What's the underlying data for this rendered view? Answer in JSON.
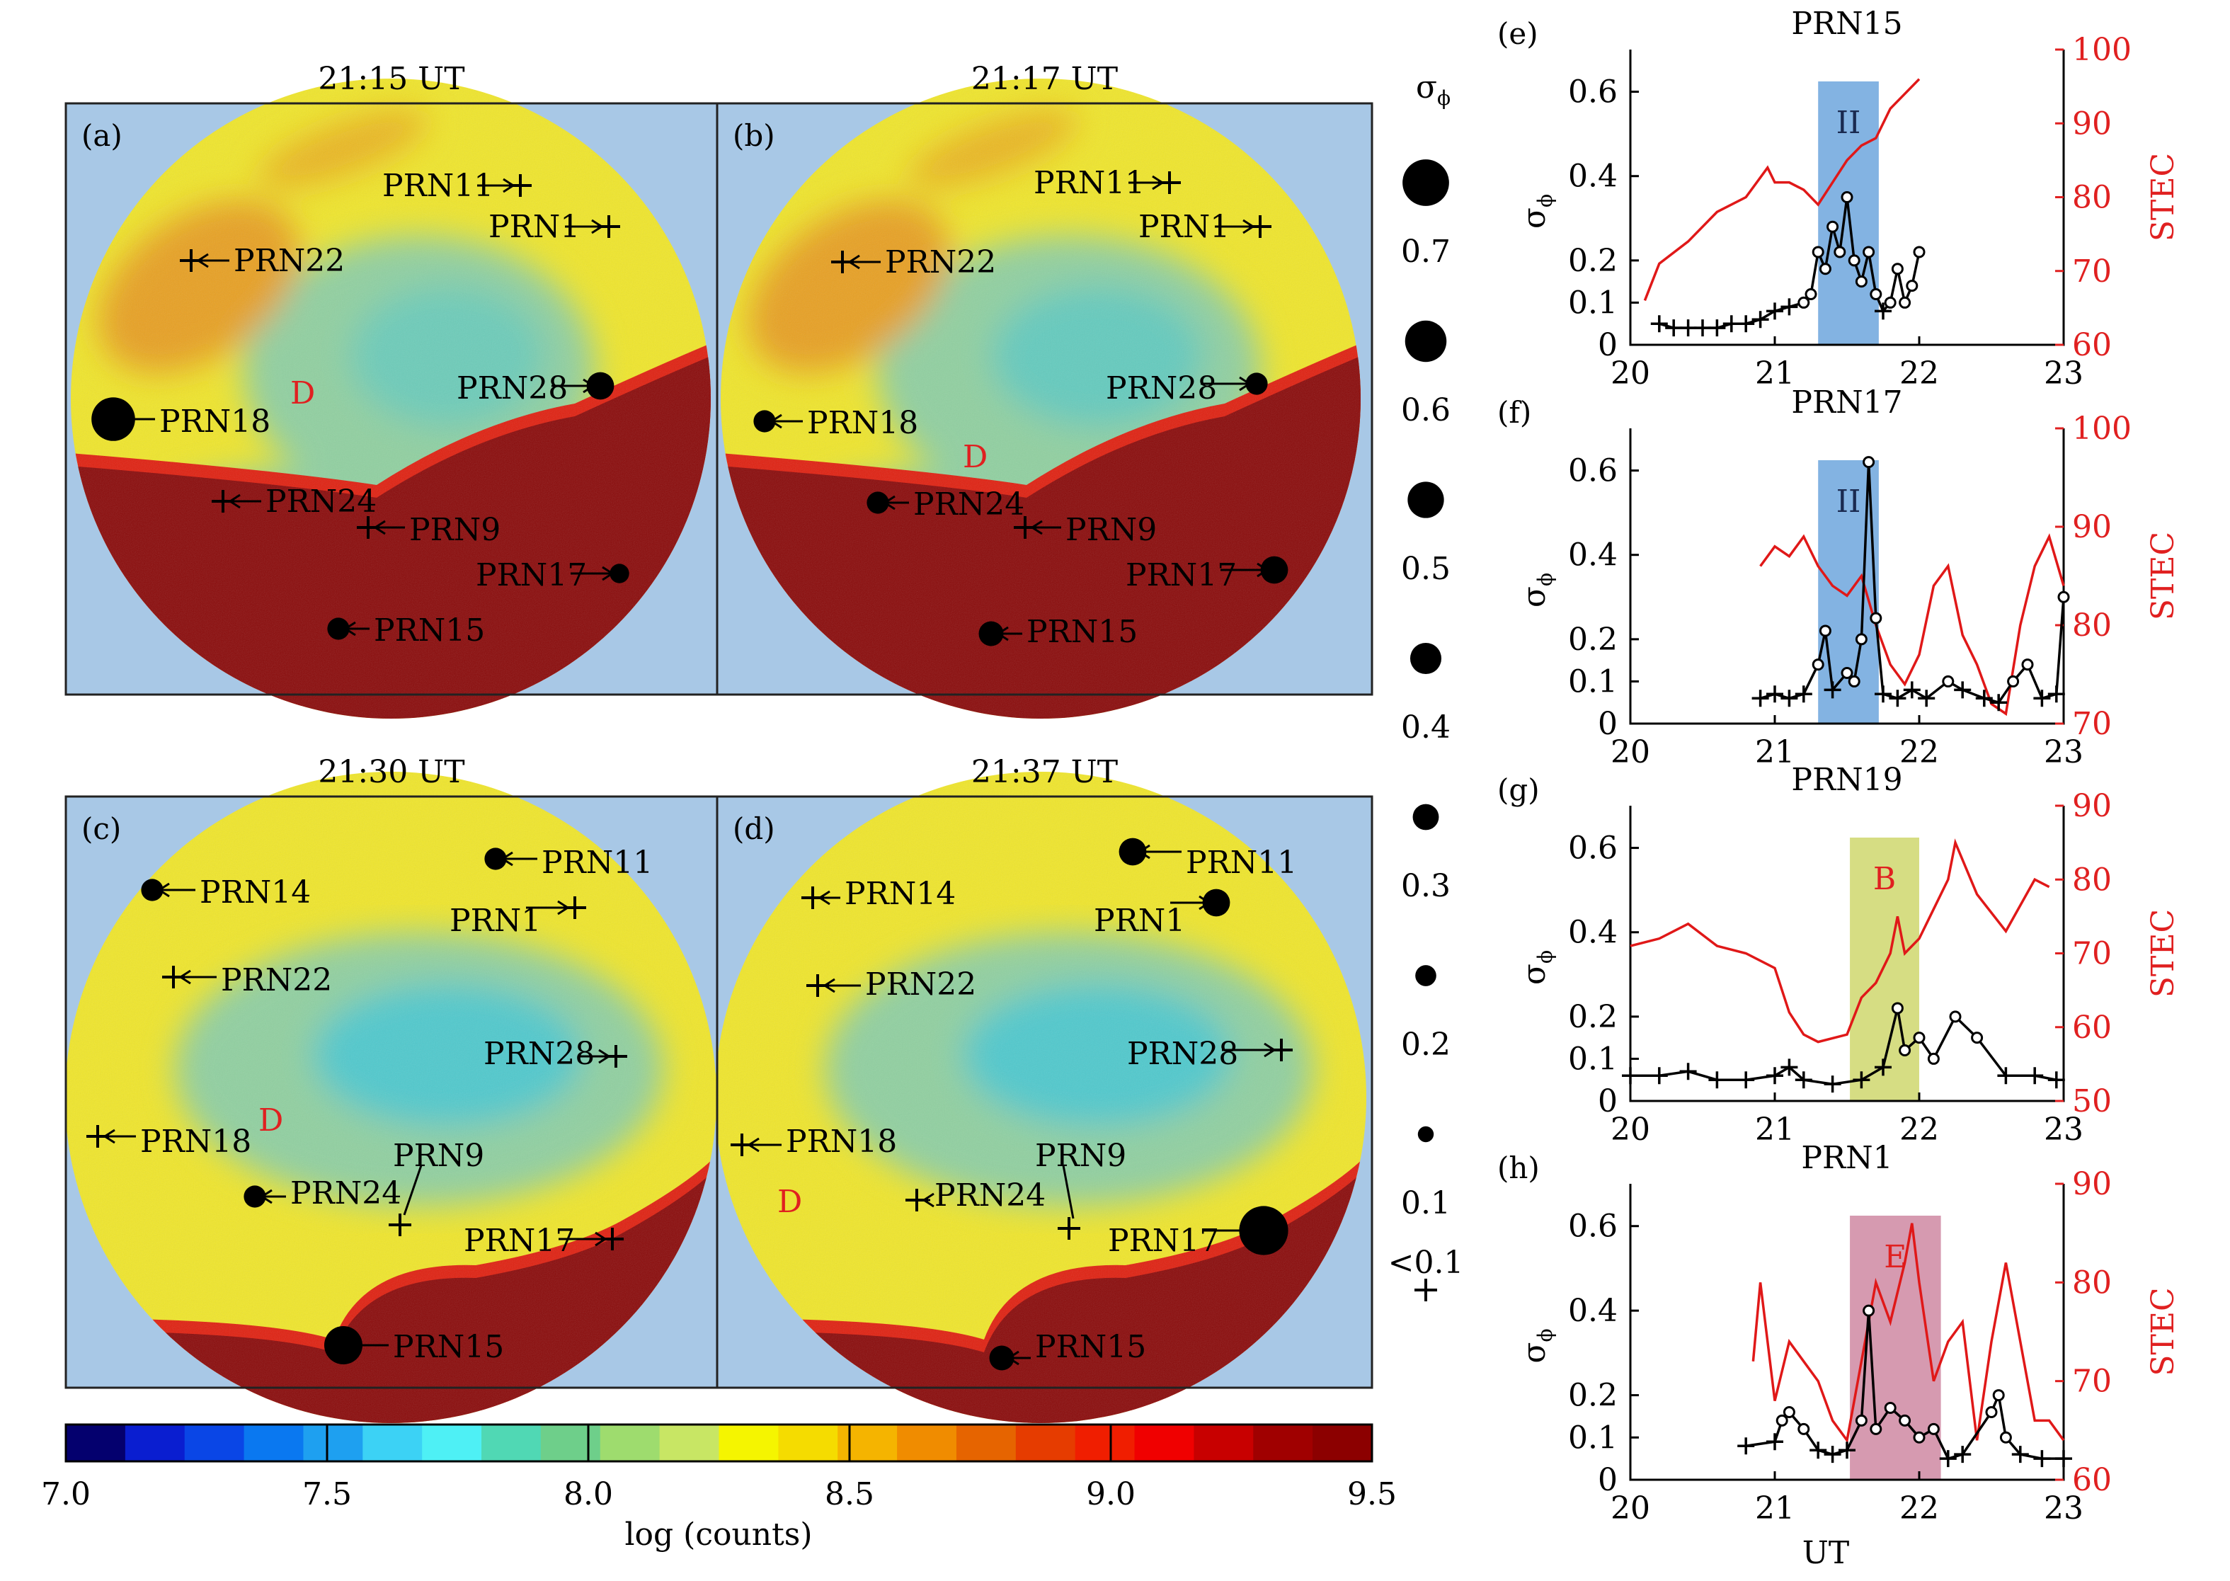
{
  "maps": [
    {
      "id": "a",
      "panel_label": "(a)",
      "time": "21:15 UT",
      "labels": [
        {
          "text": "PRN11",
          "marker": "cross",
          "size": 0
        },
        {
          "text": "PRN1",
          "marker": "cross",
          "size": 0
        },
        {
          "text": "PRN22",
          "marker": "cross",
          "size": 0
        },
        {
          "text": "PRN28",
          "marker": "dot",
          "size": 0.3
        },
        {
          "text": "PRN18",
          "marker": "dot",
          "size": 0.6
        },
        {
          "text": "PRN24",
          "marker": "cross",
          "size": 0
        },
        {
          "text": "PRN9",
          "marker": "cross",
          "size": 0
        },
        {
          "text": "PRN17",
          "marker": "dot",
          "size": 0.15
        },
        {
          "text": "PRN15",
          "marker": "dot",
          "size": 0.2
        }
      ],
      "region": "D"
    },
    {
      "id": "b",
      "panel_label": "(b)",
      "time": "21:17 UT",
      "labels": [
        {
          "text": "PRN11",
          "marker": "cross",
          "size": 0
        },
        {
          "text": "PRN1",
          "marker": "cross",
          "size": 0
        },
        {
          "text": "PRN22",
          "marker": "cross",
          "size": 0
        },
        {
          "text": "PRN28",
          "marker": "dot",
          "size": 0.2
        },
        {
          "text": "PRN18",
          "marker": "dot",
          "size": 0.2
        },
        {
          "text": "PRN24",
          "marker": "dot",
          "size": 0.2
        },
        {
          "text": "PRN9",
          "marker": "cross",
          "size": 0
        },
        {
          "text": "PRN17",
          "marker": "dot",
          "size": 0.3
        },
        {
          "text": "PRN15",
          "marker": "dot",
          "size": 0.25
        }
      ],
      "region": "D"
    },
    {
      "id": "c",
      "panel_label": "(c)",
      "time": "21:30 UT",
      "labels": [
        {
          "text": "PRN14",
          "marker": "dot",
          "size": 0.2
        },
        {
          "text": "PRN11",
          "marker": "dot",
          "size": 0.2
        },
        {
          "text": "PRN1",
          "marker": "cross",
          "size": 0
        },
        {
          "text": "PRN22",
          "marker": "cross",
          "size": 0
        },
        {
          "text": "PRN28",
          "marker": "cross",
          "size": 0
        },
        {
          "text": "PRN18",
          "marker": "cross",
          "size": 0
        },
        {
          "text": "PRN9",
          "marker": "cross",
          "size": 0
        },
        {
          "text": "PRN24",
          "marker": "dot",
          "size": 0.2
        },
        {
          "text": "PRN17",
          "marker": "cross",
          "size": 0
        },
        {
          "text": "PRN15",
          "marker": "dot",
          "size": 0.5
        }
      ],
      "region": "D"
    },
    {
      "id": "d",
      "panel_label": "(d)",
      "time": "21:37 UT",
      "labels": [
        {
          "text": "PRN11",
          "marker": "dot",
          "size": 0.3
        },
        {
          "text": "PRN14",
          "marker": "cross",
          "size": 0
        },
        {
          "text": "PRN1",
          "marker": "dot",
          "size": 0.3
        },
        {
          "text": "PRN22",
          "marker": "cross",
          "size": 0
        },
        {
          "text": "PRN28",
          "marker": "cross",
          "size": 0
        },
        {
          "text": "PRN18",
          "marker": "cross",
          "size": 0
        },
        {
          "text": "PRN9",
          "marker": "cross",
          "size": 0
        },
        {
          "text": "PRN24",
          "marker": "cross",
          "size": 0
        },
        {
          "text": "PRN17",
          "marker": "dot",
          "size": 0.7
        },
        {
          "text": "PRN15",
          "marker": "dot",
          "size": 0.25
        }
      ],
      "region": "D"
    }
  ],
  "sigma_legend": {
    "title": "σ",
    "title_sub": "ϕ",
    "entries": [
      {
        "label": "0.7",
        "size": 0.7
      },
      {
        "label": "0.6",
        "size": 0.6
      },
      {
        "label": "0.5",
        "size": 0.5
      },
      {
        "label": "0.4",
        "size": 0.4
      },
      {
        "label": "0.3",
        "size": 0.3
      },
      {
        "label": "0.2",
        "size": 0.2
      },
      {
        "label": "0.1",
        "size": 0.1
      },
      {
        "label": "<0.1",
        "size": 0
      }
    ]
  },
  "colorbar": {
    "ticks": [
      "7.0",
      "7.5",
      "8.0",
      "8.5",
      "9.0",
      "9.5"
    ],
    "range": [
      7.0,
      9.5
    ],
    "label": "log (counts)",
    "colors": [
      "#04006e",
      "#0a1ed0",
      "#0a46e6",
      "#0a78f0",
      "#1ea0f0",
      "#3cd2f5",
      "#4ef0f5",
      "#50d8b4",
      "#6ecf8a",
      "#9edc6e",
      "#c8e664",
      "#f5f500",
      "#f5dc00",
      "#f5b400",
      "#f08c00",
      "#e66400",
      "#e63c00",
      "#f01e00",
      "#f00000",
      "#c80000",
      "#a00000",
      "#8c0000"
    ]
  },
  "map_colors": {
    "background": "#a8c8e6",
    "blue_region": "#48c8d2",
    "green_region": "#90d0a0",
    "yellow_region": "#f0e62a",
    "orange_region": "#e8a020",
    "red_region": "#8a0a0a"
  },
  "chart_data": [
    {
      "id": "e",
      "panel_label": "(e)",
      "title": "PRN15",
      "type": "line",
      "x_range": [
        20,
        23
      ],
      "x_ticks": [
        "20",
        "21",
        "22",
        "23"
      ],
      "y_label": "σ",
      "y_label_sub": "ϕ",
      "y_ticks": [
        "0",
        "0.1",
        "0.2",
        "0.4",
        "0.6"
      ],
      "y_tick_values": [
        0,
        0.1,
        0.2,
        0.4,
        0.6
      ],
      "y_range": [
        0,
        0.7
      ],
      "y2_label": "STEC",
      "y2_ticks": [
        "60",
        "70",
        "80",
        "90",
        "100"
      ],
      "y2_tick_values": [
        60,
        70,
        80,
        90,
        100
      ],
      "y2_range": [
        60,
        100
      ],
      "shade": {
        "label": "II",
        "x0": 21.3,
        "x1": 21.72,
        "color": "#5a9ad8"
      },
      "stec": [
        [
          20.1,
          66
        ],
        [
          20.2,
          71
        ],
        [
          20.4,
          74
        ],
        [
          20.6,
          78
        ],
        [
          20.8,
          80
        ],
        [
          20.95,
          84
        ],
        [
          21.0,
          82
        ],
        [
          21.1,
          82
        ],
        [
          21.2,
          81
        ],
        [
          21.3,
          79
        ],
        [
          21.4,
          82
        ],
        [
          21.5,
          85
        ],
        [
          21.6,
          87
        ],
        [
          21.7,
          88
        ],
        [
          21.8,
          92
        ],
        [
          21.9,
          94
        ],
        [
          22.0,
          96
        ]
      ],
      "sigma": [
        [
          20.2,
          0.05
        ],
        [
          20.3,
          0.04
        ],
        [
          20.4,
          0.04
        ],
        [
          20.5,
          0.04
        ],
        [
          20.6,
          0.04
        ],
        [
          20.7,
          0.05
        ],
        [
          20.8,
          0.05
        ],
        [
          20.9,
          0.06
        ],
        [
          21.0,
          0.08
        ],
        [
          21.1,
          0.09
        ],
        [
          21.2,
          0.1
        ],
        [
          21.25,
          0.12
        ],
        [
          21.3,
          0.22
        ],
        [
          21.35,
          0.18
        ],
        [
          21.4,
          0.28
        ],
        [
          21.45,
          0.22
        ],
        [
          21.5,
          0.35
        ],
        [
          21.55,
          0.2
        ],
        [
          21.6,
          0.15
        ],
        [
          21.65,
          0.22
        ],
        [
          21.7,
          0.12
        ],
        [
          21.75,
          0.08
        ],
        [
          21.8,
          0.1
        ],
        [
          21.85,
          0.18
        ],
        [
          21.9,
          0.1
        ],
        [
          21.95,
          0.14
        ],
        [
          22.0,
          0.22
        ]
      ]
    },
    {
      "id": "f",
      "panel_label": "(f)",
      "title": "PRN17",
      "type": "line",
      "x_range": [
        20,
        23
      ],
      "x_ticks": [
        "20",
        "21",
        "22",
        "23"
      ],
      "y_label": "σ",
      "y_label_sub": "ϕ",
      "y_ticks": [
        "0",
        "0.1",
        "0.2",
        "0.4",
        "0.6"
      ],
      "y_tick_values": [
        0,
        0.1,
        0.2,
        0.4,
        0.6
      ],
      "y_range": [
        0,
        0.7
      ],
      "y2_label": "STEC",
      "y2_ticks": [
        "70",
        "80",
        "90",
        "100"
      ],
      "y2_tick_values": [
        70,
        80,
        90,
        100
      ],
      "y2_range": [
        70,
        100
      ],
      "shade": {
        "label": "II",
        "x0": 21.3,
        "x1": 21.72,
        "color": "#5a9ad8"
      },
      "stec": [
        [
          20.9,
          86
        ],
        [
          21.0,
          88
        ],
        [
          21.1,
          87
        ],
        [
          21.2,
          89
        ],
        [
          21.3,
          86
        ],
        [
          21.4,
          84
        ],
        [
          21.5,
          83
        ],
        [
          21.6,
          85
        ],
        [
          21.7,
          80
        ],
        [
          21.8,
          76
        ],
        [
          21.9,
          74
        ],
        [
          22.0,
          77
        ],
        [
          22.1,
          84
        ],
        [
          22.2,
          86
        ],
        [
          22.3,
          79
        ],
        [
          22.4,
          76
        ],
        [
          22.5,
          72
        ],
        [
          22.6,
          71
        ],
        [
          22.7,
          80
        ],
        [
          22.8,
          86
        ],
        [
          22.9,
          89
        ],
        [
          23.0,
          84
        ]
      ],
      "sigma": [
        [
          20.9,
          0.06
        ],
        [
          21.0,
          0.07
        ],
        [
          21.1,
          0.06
        ],
        [
          21.2,
          0.07
        ],
        [
          21.3,
          0.14
        ],
        [
          21.35,
          0.22
        ],
        [
          21.4,
          0.08
        ],
        [
          21.5,
          0.12
        ],
        [
          21.55,
          0.1
        ],
        [
          21.6,
          0.2
        ],
        [
          21.65,
          0.62
        ],
        [
          21.7,
          0.25
        ],
        [
          21.75,
          0.07
        ],
        [
          21.85,
          0.06
        ],
        [
          21.95,
          0.08
        ],
        [
          22.05,
          0.06
        ],
        [
          22.2,
          0.1
        ],
        [
          22.3,
          0.08
        ],
        [
          22.45,
          0.06
        ],
        [
          22.55,
          0.05
        ],
        [
          22.65,
          0.1
        ],
        [
          22.75,
          0.14
        ],
        [
          22.85,
          0.06
        ],
        [
          22.95,
          0.07
        ],
        [
          23.0,
          0.3
        ]
      ]
    },
    {
      "id": "g",
      "panel_label": "(g)",
      "title": "PRN19",
      "type": "line",
      "x_range": [
        20,
        23
      ],
      "x_ticks": [
        "20",
        "21",
        "22",
        "23"
      ],
      "y_label": "σ",
      "y_label_sub": "ϕ",
      "y_ticks": [
        "0",
        "0.1",
        "0.2",
        "0.4",
        "0.6"
      ],
      "y_tick_values": [
        0,
        0.1,
        0.2,
        0.4,
        0.6
      ],
      "y_range": [
        0,
        0.7
      ],
      "y2_label": "STEC",
      "y2_ticks": [
        "50",
        "60",
        "70",
        "80",
        "90"
      ],
      "y2_tick_values": [
        50,
        60,
        70,
        80,
        90
      ],
      "y2_range": [
        50,
        90
      ],
      "shade": {
        "label": "B",
        "x0": 21.52,
        "x1": 22.0,
        "color": "#c8d25a"
      },
      "stec": [
        [
          20.0,
          71
        ],
        [
          20.2,
          72
        ],
        [
          20.4,
          74
        ],
        [
          20.6,
          71
        ],
        [
          20.8,
          70
        ],
        [
          21.0,
          68
        ],
        [
          21.1,
          62
        ],
        [
          21.2,
          59
        ],
        [
          21.3,
          58
        ],
        [
          21.5,
          59
        ],
        [
          21.6,
          64
        ],
        [
          21.7,
          66
        ],
        [
          21.8,
          70
        ],
        [
          21.85,
          75
        ],
        [
          21.9,
          70
        ],
        [
          22.0,
          72
        ],
        [
          22.1,
          76
        ],
        [
          22.2,
          80
        ],
        [
          22.25,
          85
        ],
        [
          22.4,
          78
        ],
        [
          22.6,
          73
        ],
        [
          22.8,
          80
        ],
        [
          22.9,
          79
        ]
      ],
      "sigma": [
        [
          20.0,
          0.06
        ],
        [
          20.2,
          0.06
        ],
        [
          20.4,
          0.07
        ],
        [
          20.6,
          0.05
        ],
        [
          20.8,
          0.05
        ],
        [
          21.0,
          0.06
        ],
        [
          21.1,
          0.08
        ],
        [
          21.2,
          0.05
        ],
        [
          21.4,
          0.04
        ],
        [
          21.6,
          0.05
        ],
        [
          21.75,
          0.08
        ],
        [
          21.85,
          0.22
        ],
        [
          21.9,
          0.12
        ],
        [
          22.0,
          0.15
        ],
        [
          22.1,
          0.1
        ],
        [
          22.25,
          0.2
        ],
        [
          22.4,
          0.15
        ],
        [
          22.6,
          0.06
        ],
        [
          22.8,
          0.06
        ],
        [
          22.95,
          0.05
        ]
      ]
    },
    {
      "id": "h",
      "panel_label": "(h)",
      "title": "PRN1",
      "type": "line",
      "x_range": [
        20,
        23
      ],
      "x_ticks": [
        "20",
        "21",
        "22",
        "23"
      ],
      "x_label": "UT",
      "y_label": "σ",
      "y_label_sub": "ϕ",
      "y_ticks": [
        "0",
        "0.1",
        "0.2",
        "0.4",
        "0.6"
      ],
      "y_tick_values": [
        0,
        0.1,
        0.2,
        0.4,
        0.6
      ],
      "y_range": [
        0,
        0.7
      ],
      "y2_label": "STEC",
      "y2_ticks": [
        "60",
        "70",
        "80",
        "90"
      ],
      "y2_tick_values": [
        60,
        70,
        80,
        90
      ],
      "y2_range": [
        60,
        90
      ],
      "shade": {
        "label": "E",
        "x0": 21.52,
        "x1": 22.15,
        "color": "#c87896"
      },
      "stec": [
        [
          20.85,
          72
        ],
        [
          20.9,
          80
        ],
        [
          21.0,
          68
        ],
        [
          21.1,
          74
        ],
        [
          21.2,
          72
        ],
        [
          21.3,
          70
        ],
        [
          21.4,
          66
        ],
        [
          21.5,
          64
        ],
        [
          21.6,
          72
        ],
        [
          21.7,
          80
        ],
        [
          21.8,
          76
        ],
        [
          21.9,
          82
        ],
        [
          21.95,
          86
        ],
        [
          22.0,
          80
        ],
        [
          22.1,
          70
        ],
        [
          22.2,
          74
        ],
        [
          22.3,
          76
        ],
        [
          22.4,
          64
        ],
        [
          22.5,
          74
        ],
        [
          22.6,
          82
        ],
        [
          22.7,
          74
        ],
        [
          22.8,
          66
        ],
        [
          22.9,
          66
        ],
        [
          23.0,
          64
        ]
      ],
      "sigma": [
        [
          20.8,
          0.08
        ],
        [
          21.0,
          0.09
        ],
        [
          21.05,
          0.14
        ],
        [
          21.1,
          0.16
        ],
        [
          21.2,
          0.12
        ],
        [
          21.3,
          0.07
        ],
        [
          21.4,
          0.06
        ],
        [
          21.5,
          0.07
        ],
        [
          21.6,
          0.14
        ],
        [
          21.65,
          0.4
        ],
        [
          21.7,
          0.12
        ],
        [
          21.8,
          0.17
        ],
        [
          21.9,
          0.14
        ],
        [
          22.0,
          0.1
        ],
        [
          22.1,
          0.12
        ],
        [
          22.2,
          0.05
        ],
        [
          22.3,
          0.06
        ],
        [
          22.5,
          0.16
        ],
        [
          22.55,
          0.2
        ],
        [
          22.6,
          0.1
        ],
        [
          22.7,
          0.06
        ],
        [
          22.85,
          0.05
        ],
        [
          23.0,
          0.05
        ]
      ]
    }
  ]
}
